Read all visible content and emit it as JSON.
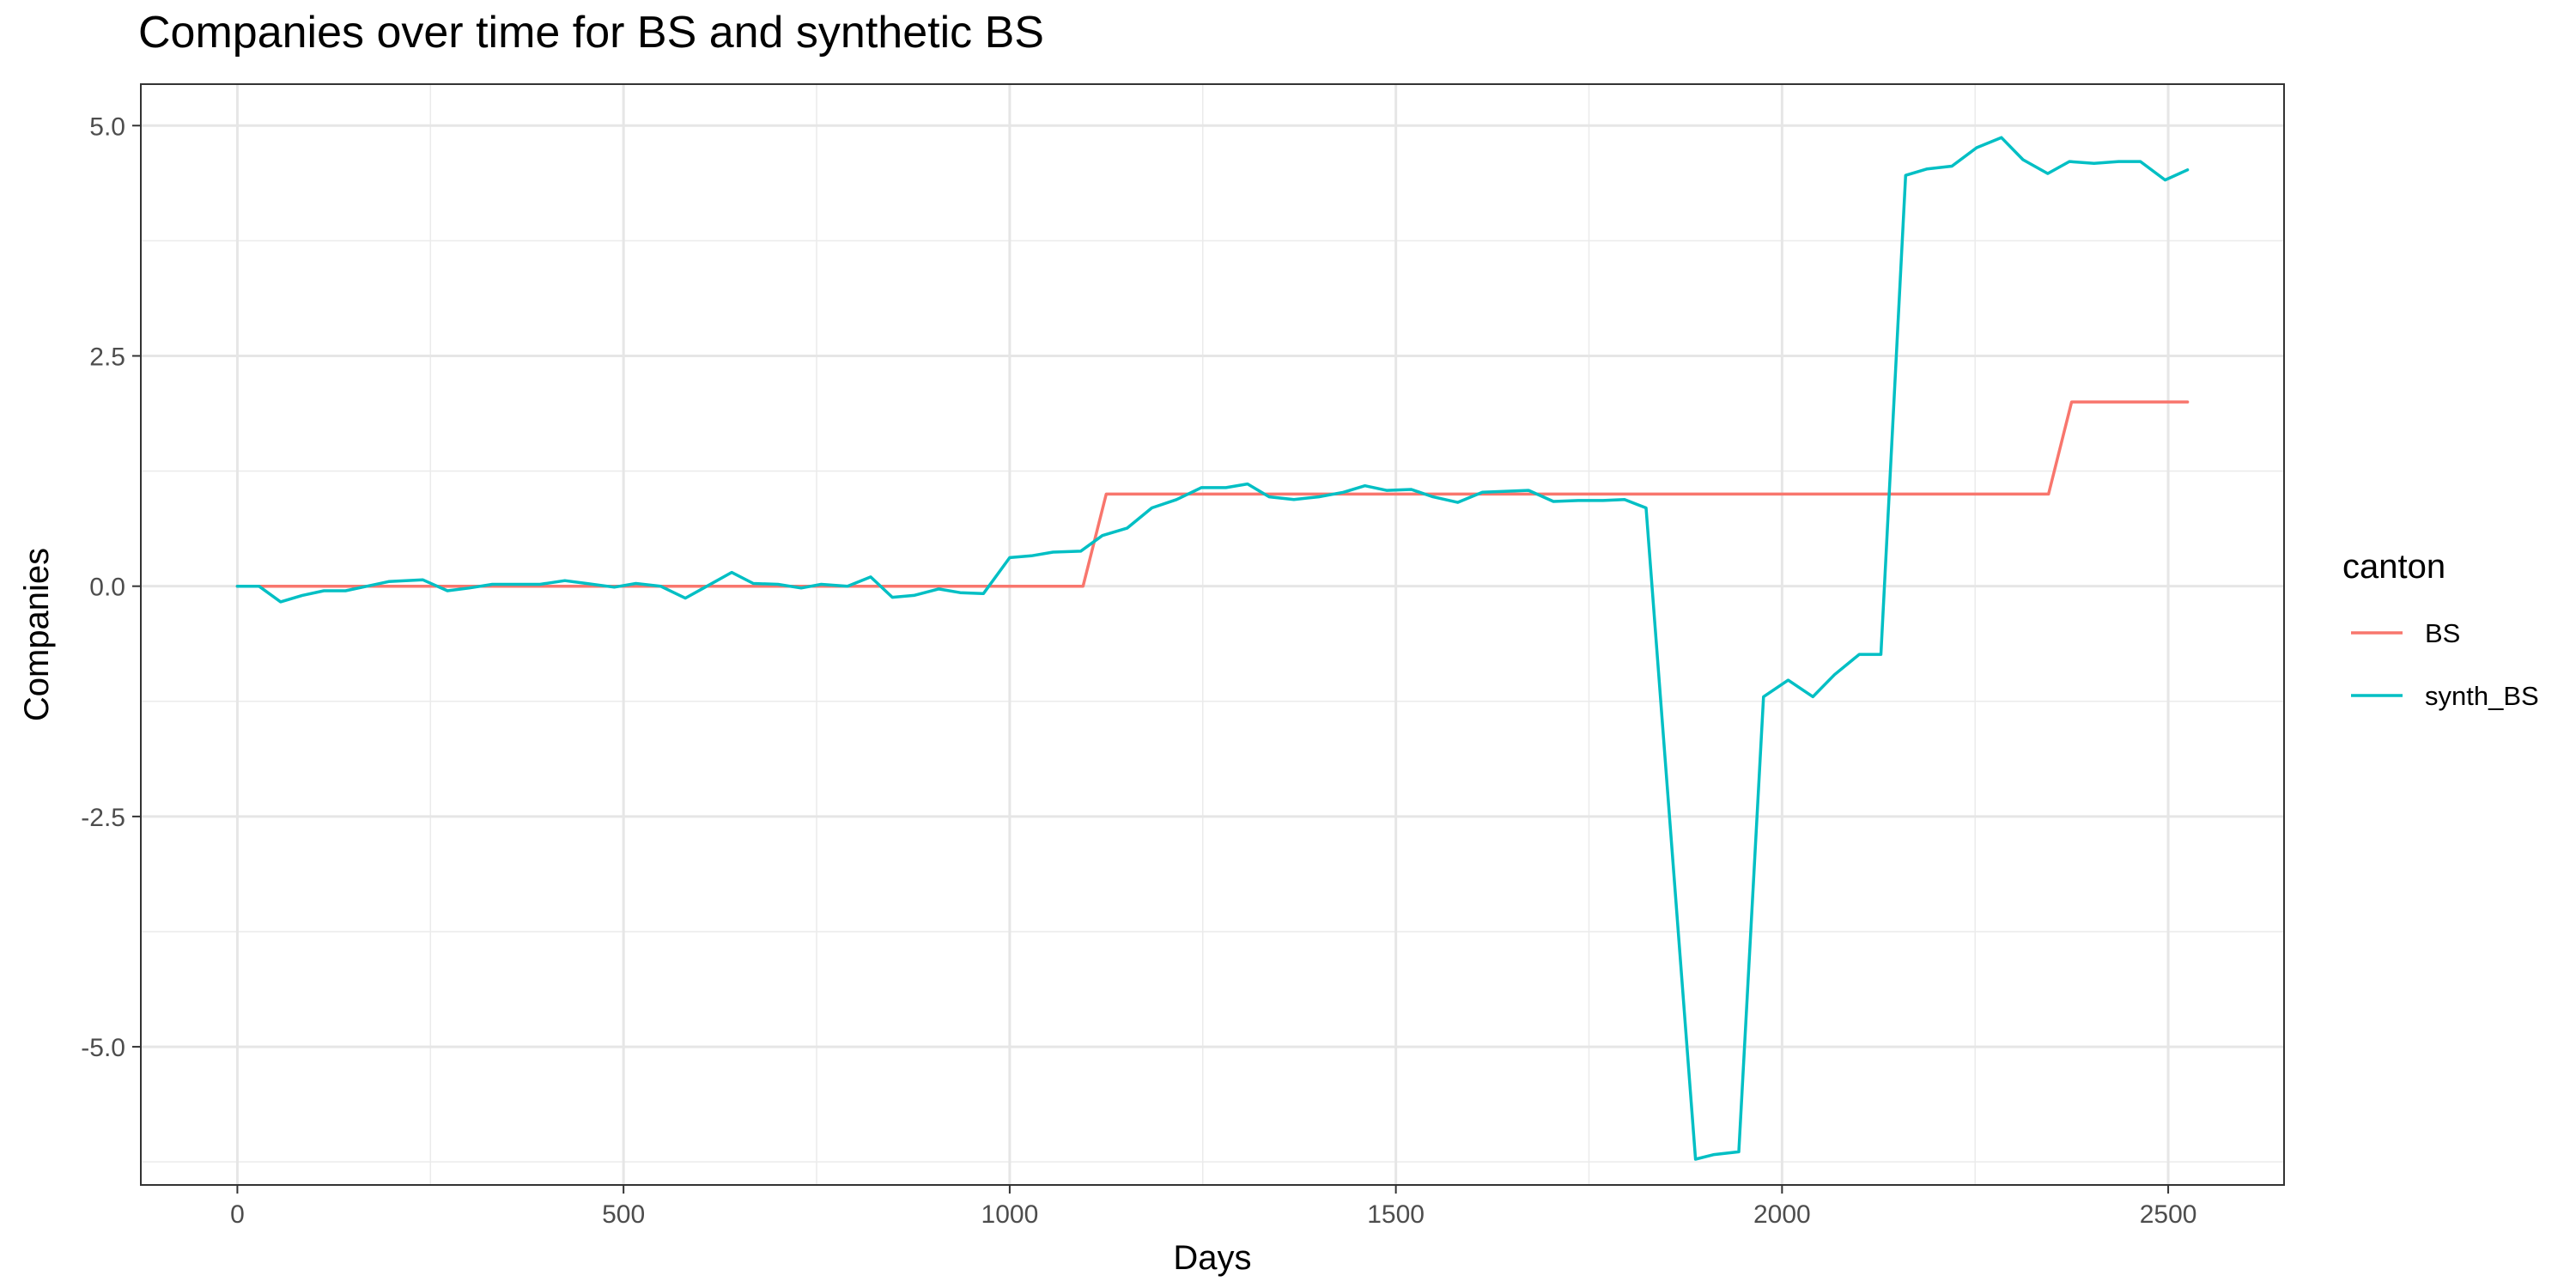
{
  "chart_data": {
    "type": "line",
    "title": "Companies over time for BS and synthetic BS",
    "xlabel": "Days",
    "ylabel": "Companies",
    "xlim": [
      -125,
      2650
    ],
    "ylim": [
      -6.5,
      5.45
    ],
    "xticks": [
      0,
      500,
      1000,
      1500,
      2000,
      2500
    ],
    "xtick_labels": [
      "0",
      "500",
      "1000",
      "1500",
      "2000",
      "2500"
    ],
    "yticks": [
      -5.0,
      -2.5,
      0.0,
      2.5,
      5.0
    ],
    "ytick_labels": [
      "-5.0",
      "-2.5",
      "0.0",
      "2.5",
      "5.0"
    ],
    "grid": true,
    "legend": {
      "title": "canton",
      "position": "right"
    },
    "series": [
      {
        "name": "BS",
        "color": "#F8766D",
        "points": [
          [
            0,
            0
          ],
          [
            1095,
            0
          ],
          [
            1125,
            1
          ],
          [
            2345,
            1
          ],
          [
            2375,
            2
          ],
          [
            2525,
            2
          ]
        ]
      },
      {
        "name": "synth_BS",
        "color": "#00BFC4",
        "points": [
          [
            0,
            0
          ],
          [
            28,
            0
          ],
          [
            56,
            -0.17
          ],
          [
            84,
            -0.1
          ],
          [
            112,
            -0.05
          ],
          [
            140,
            -0.05
          ],
          [
            168,
            0
          ],
          [
            196,
            0.05
          ],
          [
            240,
            0.07
          ],
          [
            272,
            -0.05
          ],
          [
            300,
            -0.02
          ],
          [
            330,
            0.02
          ],
          [
            360,
            0.02
          ],
          [
            392,
            0.02
          ],
          [
            424,
            0.06
          ],
          [
            452,
            0.03
          ],
          [
            488,
            -0.01
          ],
          [
            516,
            0.03
          ],
          [
            548,
            0.0
          ],
          [
            580,
            -0.13
          ],
          [
            608,
            0.0
          ],
          [
            640,
            0.15
          ],
          [
            668,
            0.03
          ],
          [
            700,
            0.02
          ],
          [
            730,
            -0.02
          ],
          [
            756,
            0.02
          ],
          [
            790,
            0.0
          ],
          [
            820,
            0.1
          ],
          [
            848,
            -0.12
          ],
          [
            876,
            -0.1
          ],
          [
            908,
            -0.03
          ],
          [
            936,
            -0.07
          ],
          [
            966,
            -0.08
          ],
          [
            1000,
            0.31
          ],
          [
            1028,
            0.33
          ],
          [
            1056,
            0.37
          ],
          [
            1092,
            0.38
          ],
          [
            1120,
            0.55
          ],
          [
            1152,
            0.63
          ],
          [
            1184,
            0.85
          ],
          [
            1216,
            0.94
          ],
          [
            1248,
            1.07
          ],
          [
            1280,
            1.07
          ],
          [
            1308,
            1.11
          ],
          [
            1336,
            0.97
          ],
          [
            1368,
            0.94
          ],
          [
            1400,
            0.97
          ],
          [
            1432,
            1.02
          ],
          [
            1460,
            1.09
          ],
          [
            1488,
            1.04
          ],
          [
            1520,
            1.05
          ],
          [
            1548,
            0.97
          ],
          [
            1580,
            0.91
          ],
          [
            1612,
            1.02
          ],
          [
            1640,
            1.03
          ],
          [
            1672,
            1.04
          ],
          [
            1704,
            0.92
          ],
          [
            1736,
            0.93
          ],
          [
            1768,
            0.93
          ],
          [
            1796,
            0.94
          ],
          [
            1824,
            0.85
          ],
          [
            1888,
            -6.22
          ],
          [
            1912,
            -6.17
          ],
          [
            1944,
            -6.14
          ],
          [
            1976,
            -1.2
          ],
          [
            2008,
            -1.02
          ],
          [
            2040,
            -1.2
          ],
          [
            2068,
            -0.96
          ],
          [
            2100,
            -0.74
          ],
          [
            2128,
            -0.74
          ],
          [
            2160,
            4.46
          ],
          [
            2188,
            4.53
          ],
          [
            2220,
            4.56
          ],
          [
            2252,
            4.76
          ],
          [
            2284,
            4.87
          ],
          [
            2312,
            4.63
          ],
          [
            2344,
            4.48
          ],
          [
            2372,
            4.61
          ],
          [
            2404,
            4.59
          ],
          [
            2436,
            4.61
          ],
          [
            2464,
            4.61
          ],
          [
            2496,
            4.41
          ],
          [
            2525,
            4.52
          ]
        ]
      }
    ]
  }
}
